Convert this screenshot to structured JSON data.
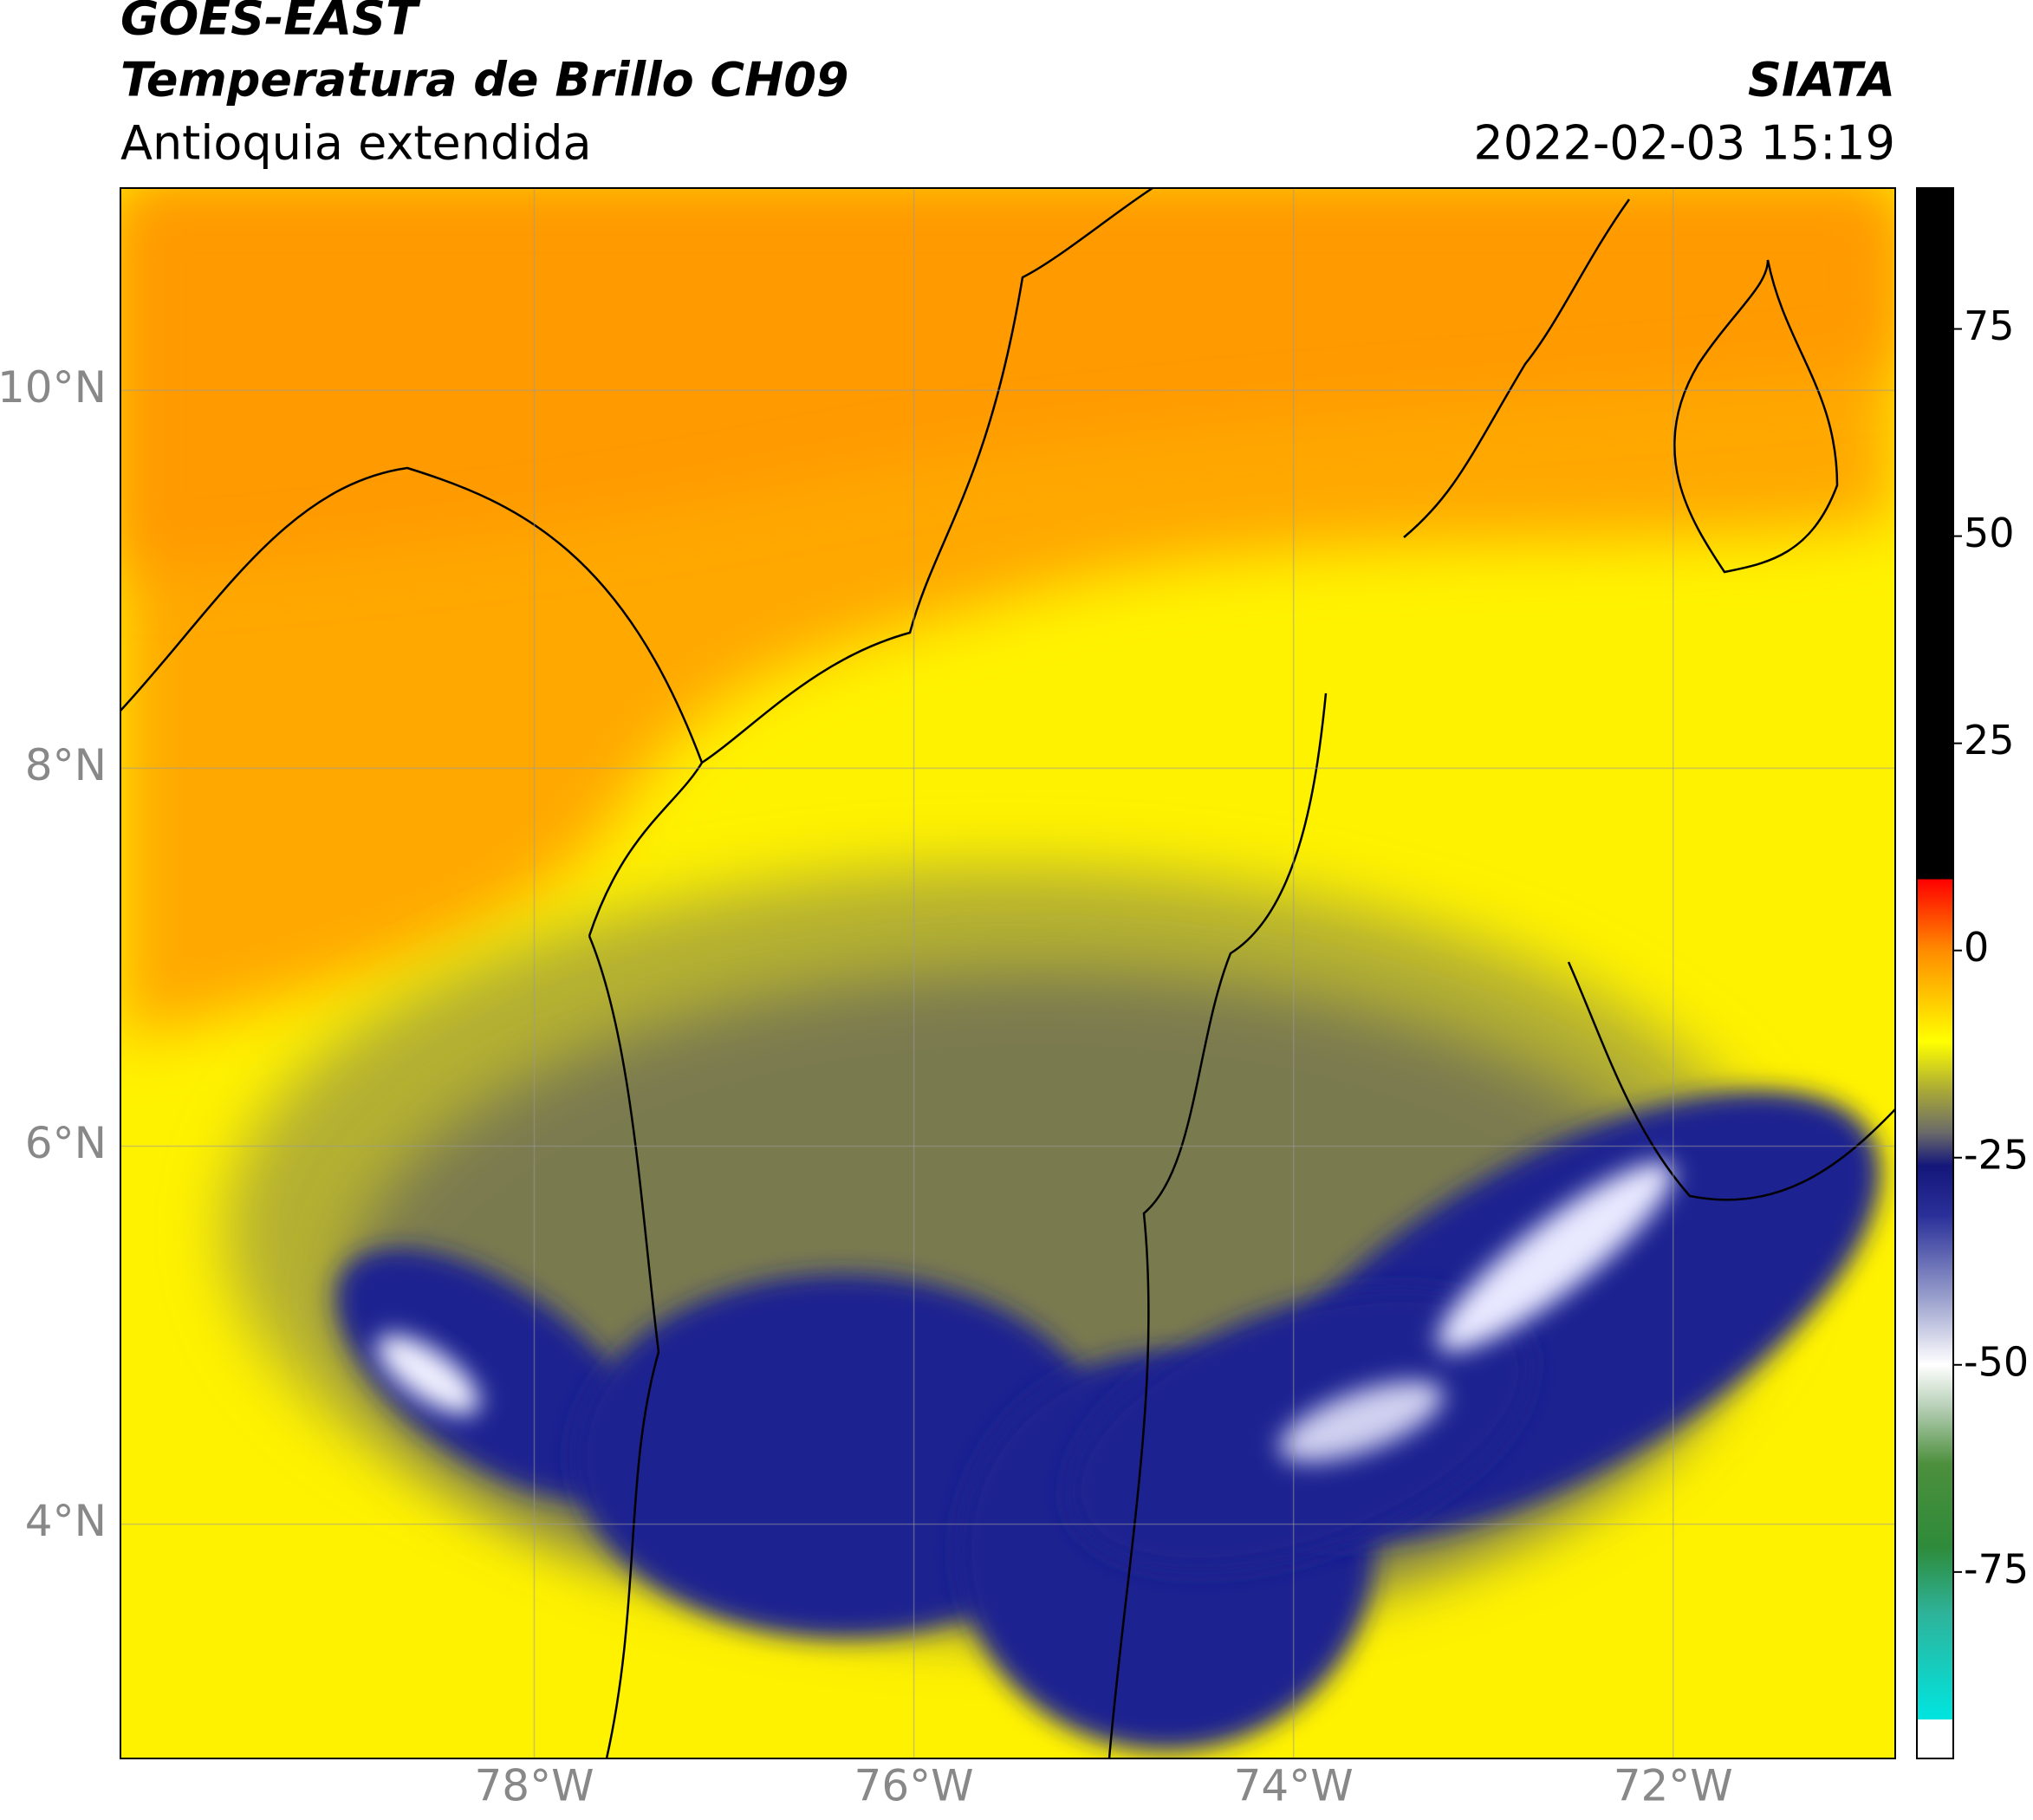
{
  "header": {
    "title": "GOES-EAST",
    "subtitle": "Temperatura de Brillo CH09",
    "region": "Antioquia extendida",
    "source": "SIATA",
    "datetime": "2022-02-03 15:19"
  },
  "map": {
    "xlim": [
      -80.18,
      -70.83
    ],
    "ylim": [
      2.76,
      11.07
    ],
    "xticks": [
      {
        "value": -78,
        "label": "78°W"
      },
      {
        "value": -76,
        "label": "76°W"
      },
      {
        "value": -74,
        "label": "74°W"
      },
      {
        "value": -72,
        "label": "72°W"
      }
    ],
    "yticks": [
      {
        "value": 4,
        "label": "4°N"
      },
      {
        "value": 6,
        "label": "6°N"
      },
      {
        "value": 8,
        "label": "8°N"
      },
      {
        "value": 10,
        "label": "10°N"
      }
    ],
    "grid": true
  },
  "colorbar": {
    "lim": [
      -97.5,
      92
    ],
    "ticks": [
      -75,
      -50,
      -25,
      0,
      25,
      50,
      75
    ],
    "colorscale": [
      [
        -97.5,
        "#ffffff"
      ],
      [
        -92.8,
        "#ffffff"
      ],
      [
        -92.8,
        "#00e5e0"
      ],
      [
        -80,
        "#2eb39a"
      ],
      [
        -72,
        "#2e8b3a"
      ],
      [
        -62,
        "#4c8f3c"
      ],
      [
        -55,
        "#b8d0b8"
      ],
      [
        -50,
        "#ffffff"
      ],
      [
        -42,
        "#9aa0cc"
      ],
      [
        -32,
        "#2a3099"
      ],
      [
        -26,
        "#14167a"
      ],
      [
        -22,
        "#6a6a6a"
      ],
      [
        -17,
        "#a8a838"
      ],
      [
        -11,
        "#ffff00"
      ],
      [
        -5,
        "#ffc000"
      ],
      [
        0,
        "#ff8c00"
      ],
      [
        8.6,
        "#ff0000"
      ],
      [
        8.6,
        "#000000"
      ],
      [
        92,
        "#000000"
      ]
    ]
  }
}
